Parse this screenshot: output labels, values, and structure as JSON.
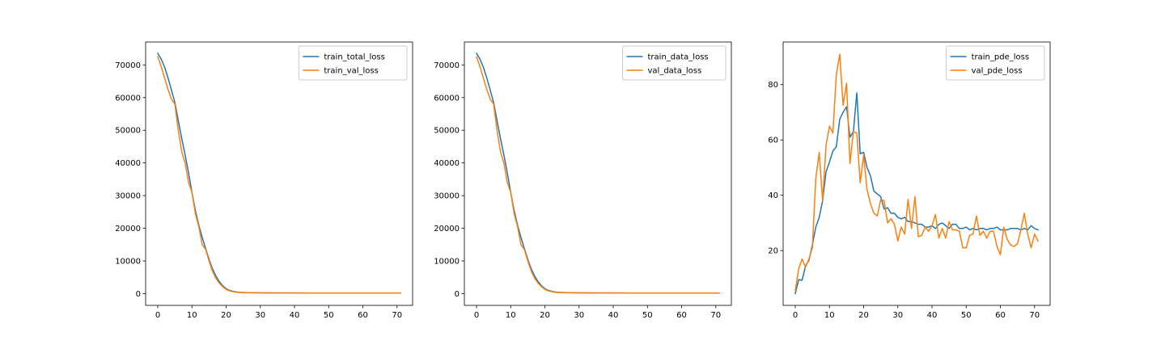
{
  "chart_data": [
    {
      "type": "line",
      "xlim": [
        -3.55,
        74.55
      ],
      "ylim": [
        -3600,
        77000
      ],
      "xticks": [
        0,
        10,
        20,
        30,
        40,
        50,
        60,
        70
      ],
      "yticks": [
        0,
        10000,
        20000,
        30000,
        40000,
        50000,
        60000,
        70000
      ],
      "legend_position": "upper right",
      "grid": false,
      "series": [
        {
          "name": "train_total_loss",
          "color": "#1f77b4",
          "values": [
            73500,
            71800,
            69300,
            66000,
            62300,
            58500,
            53000,
            47500,
            42500,
            37000,
            31000,
            25500,
            21000,
            17200,
            13800,
            10500,
            7600,
            5400,
            3700,
            2400,
            1500,
            1000,
            700,
            500,
            400,
            340,
            300,
            280,
            260,
            250,
            240,
            230,
            225,
            220,
            215,
            210,
            205,
            200,
            200,
            195,
            195,
            190,
            190,
            190,
            185,
            185,
            185,
            180,
            180,
            180,
            180,
            175,
            175,
            175,
            175,
            175,
            170,
            170,
            170,
            170,
            170,
            170,
            165,
            165,
            165,
            165,
            165,
            165,
            165,
            160,
            160,
            160
          ]
        },
        {
          "name": "train_val_loss",
          "color": "#ff7f0e",
          "values": [
            72500,
            69500,
            66000,
            62500,
            59500,
            58000,
            50000,
            43500,
            40000,
            34000,
            31000,
            24500,
            20500,
            15000,
            13500,
            10000,
            6900,
            4700,
            3200,
            2100,
            1300,
            850,
            600,
            430,
            340,
            300,
            270,
            250,
            240,
            230,
            220,
            215,
            210,
            205,
            200,
            200,
            195,
            195,
            190,
            190,
            185,
            185,
            185,
            180,
            180,
            180,
            180,
            175,
            175,
            175,
            175,
            175,
            170,
            170,
            170,
            170,
            170,
            165,
            165,
            165,
            165,
            165,
            165,
            160,
            160,
            160,
            160,
            160,
            160,
            160,
            155,
            155
          ]
        }
      ]
    },
    {
      "type": "line",
      "xlim": [
        -3.55,
        74.55
      ],
      "ylim": [
        -3600,
        77000
      ],
      "xticks": [
        0,
        10,
        20,
        30,
        40,
        50,
        60,
        70
      ],
      "yticks": [
        0,
        10000,
        20000,
        30000,
        40000,
        50000,
        60000,
        70000
      ],
      "legend_position": "upper right",
      "grid": false,
      "series": [
        {
          "name": "train_data_loss",
          "color": "#1f77b4",
          "values": [
            73500,
            71800,
            69300,
            66000,
            62300,
            58500,
            53000,
            47500,
            42500,
            37000,
            31000,
            25500,
            21000,
            17200,
            13800,
            10500,
            7600,
            5400,
            3700,
            2400,
            1500,
            1000,
            700,
            500,
            400,
            340,
            300,
            280,
            260,
            250,
            240,
            230,
            225,
            220,
            215,
            210,
            205,
            200,
            200,
            195,
            195,
            190,
            190,
            190,
            185,
            185,
            185,
            180,
            180,
            180,
            180,
            175,
            175,
            175,
            175,
            175,
            170,
            170,
            170,
            170,
            170,
            170,
            165,
            165,
            165,
            165,
            165,
            165,
            165,
            160,
            160,
            160
          ]
        },
        {
          "name": "val_data_loss",
          "color": "#ff7f0e",
          "values": [
            72500,
            69500,
            66000,
            62500,
            59500,
            58000,
            50000,
            43500,
            40000,
            34000,
            31000,
            24500,
            20500,
            15000,
            13500,
            10000,
            6900,
            4700,
            3200,
            2100,
            1300,
            850,
            600,
            430,
            340,
            300,
            270,
            250,
            240,
            230,
            220,
            215,
            210,
            205,
            200,
            200,
            195,
            195,
            190,
            190,
            185,
            185,
            185,
            180,
            180,
            180,
            180,
            175,
            175,
            175,
            175,
            175,
            170,
            170,
            170,
            170,
            170,
            165,
            165,
            165,
            165,
            165,
            165,
            160,
            160,
            160,
            160,
            160,
            160,
            160,
            155,
            155
          ]
        }
      ]
    },
    {
      "type": "line",
      "xlim": [
        -3.55,
        74.55
      ],
      "ylim": [
        0.2,
        95.4
      ],
      "xticks": [
        0,
        10,
        20,
        30,
        40,
        50,
        60,
        70
      ],
      "yticks": [
        20,
        40,
        60,
        80
      ],
      "legend_position": "upper right",
      "grid": false,
      "series": [
        {
          "name": "train_pde_loss",
          "color": "#1f77b4",
          "values": [
            4.5,
            9.5,
            9.3,
            14.5,
            16.5,
            22,
            28.5,
            32,
            38,
            48.5,
            52,
            56,
            57.5,
            67.5,
            70,
            72,
            61,
            63,
            77,
            55,
            55.5,
            50,
            47,
            41.5,
            40.5,
            39.5,
            35,
            35.5,
            33.5,
            33.5,
            32,
            31.5,
            32,
            30.5,
            30.5,
            30,
            29.5,
            29.5,
            28.5,
            28.5,
            29,
            28,
            29.5,
            30,
            29,
            28,
            29.5,
            29.5,
            28,
            28,
            28.5,
            27.5,
            28,
            27.5,
            28,
            28,
            27.5,
            28,
            28,
            28.5,
            27.5,
            27.5,
            27.5,
            28,
            28,
            28,
            27.5,
            28,
            27.5,
            29,
            28,
            27.5
          ]
        },
        {
          "name": "val_pde_loss",
          "color": "#ff7f0e",
          "values": [
            5.5,
            13.5,
            17,
            14,
            17,
            21,
            46,
            55.5,
            38,
            58,
            65,
            62.5,
            83.5,
            91,
            72.5,
            80.5,
            51.5,
            63,
            62.5,
            44.5,
            54.5,
            42,
            37,
            33.5,
            32.5,
            38.5,
            38,
            30,
            31.5,
            29.5,
            23.5,
            28.5,
            26,
            38.5,
            28,
            39.5,
            25,
            25.5,
            28.5,
            27,
            29,
            33,
            24.5,
            28,
            24.5,
            30.5,
            27.5,
            27.5,
            27,
            21,
            21,
            25.5,
            26,
            32.5,
            25.5,
            27,
            24.5,
            27,
            27,
            21.5,
            18.5,
            28.5,
            24,
            22,
            21.5,
            22.5,
            27.5,
            33.5,
            26,
            21,
            26,
            23.5
          ]
        }
      ]
    }
  ]
}
